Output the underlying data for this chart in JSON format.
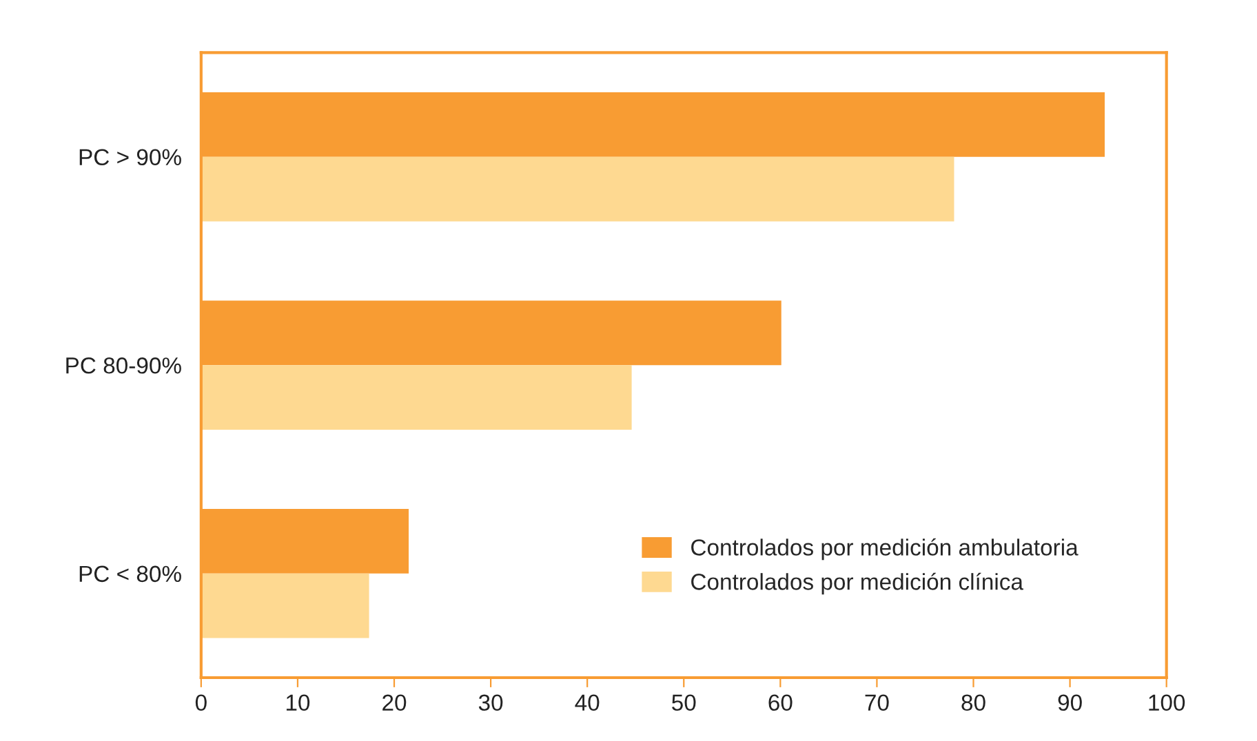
{
  "chart_data": {
    "type": "bar",
    "orientation": "horizontal",
    "categories": [
      "PC > 90%",
      "PC 80-90%",
      "PC < 80%"
    ],
    "series": [
      {
        "name": "Controlados por medición ambulatoria",
        "color": "#f89c33",
        "values": [
          93.6,
          60.1,
          21.5
        ]
      },
      {
        "name": "Controlados por medición clínica",
        "color": "#fed991",
        "values": [
          78.0,
          44.6,
          17.4
        ]
      }
    ],
    "xlim": [
      0,
      100
    ],
    "xticks": [
      0,
      10,
      20,
      30,
      40,
      50,
      60,
      70,
      80,
      90,
      100
    ],
    "grid": false,
    "legend": "bottom right"
  }
}
